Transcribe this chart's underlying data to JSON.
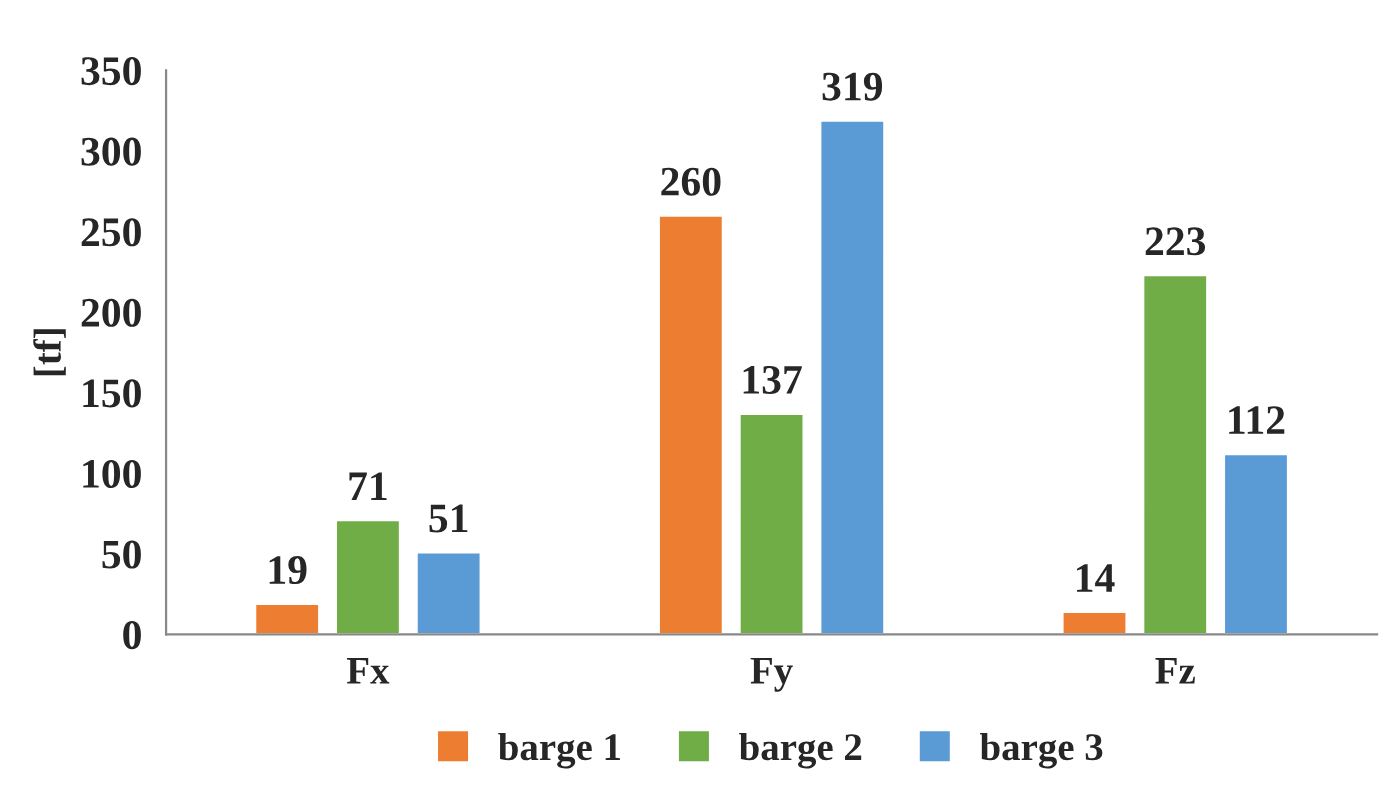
{
  "chart_data": {
    "type": "bar",
    "ylabel": "[tf]",
    "categories": [
      "Fx",
      "Fy",
      "Fz"
    ],
    "series": [
      {
        "name": "barge 1",
        "color": "#ed7d31",
        "values": [
          19,
          260,
          14
        ]
      },
      {
        "name": "barge 2",
        "color": "#70ad47",
        "values": [
          71,
          137,
          223
        ]
      },
      {
        "name": "barge 3",
        "color": "#5b9bd5",
        "values": [
          51,
          319,
          112
        ]
      }
    ],
    "ylim": [
      0,
      350
    ],
    "yticks": [
      0,
      50,
      100,
      150,
      200,
      250,
      300,
      350
    ],
    "data_labels": true,
    "grid": false,
    "legend": "bottom"
  }
}
